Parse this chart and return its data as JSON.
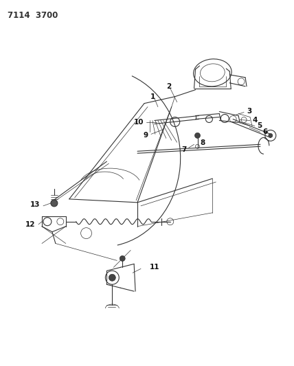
{
  "title": "7114  3700",
  "bg_color": "#ffffff",
  "line_color": "#333333",
  "label_color": "#111111",
  "fig_width": 4.28,
  "fig_height": 5.33,
  "dpi": 100
}
